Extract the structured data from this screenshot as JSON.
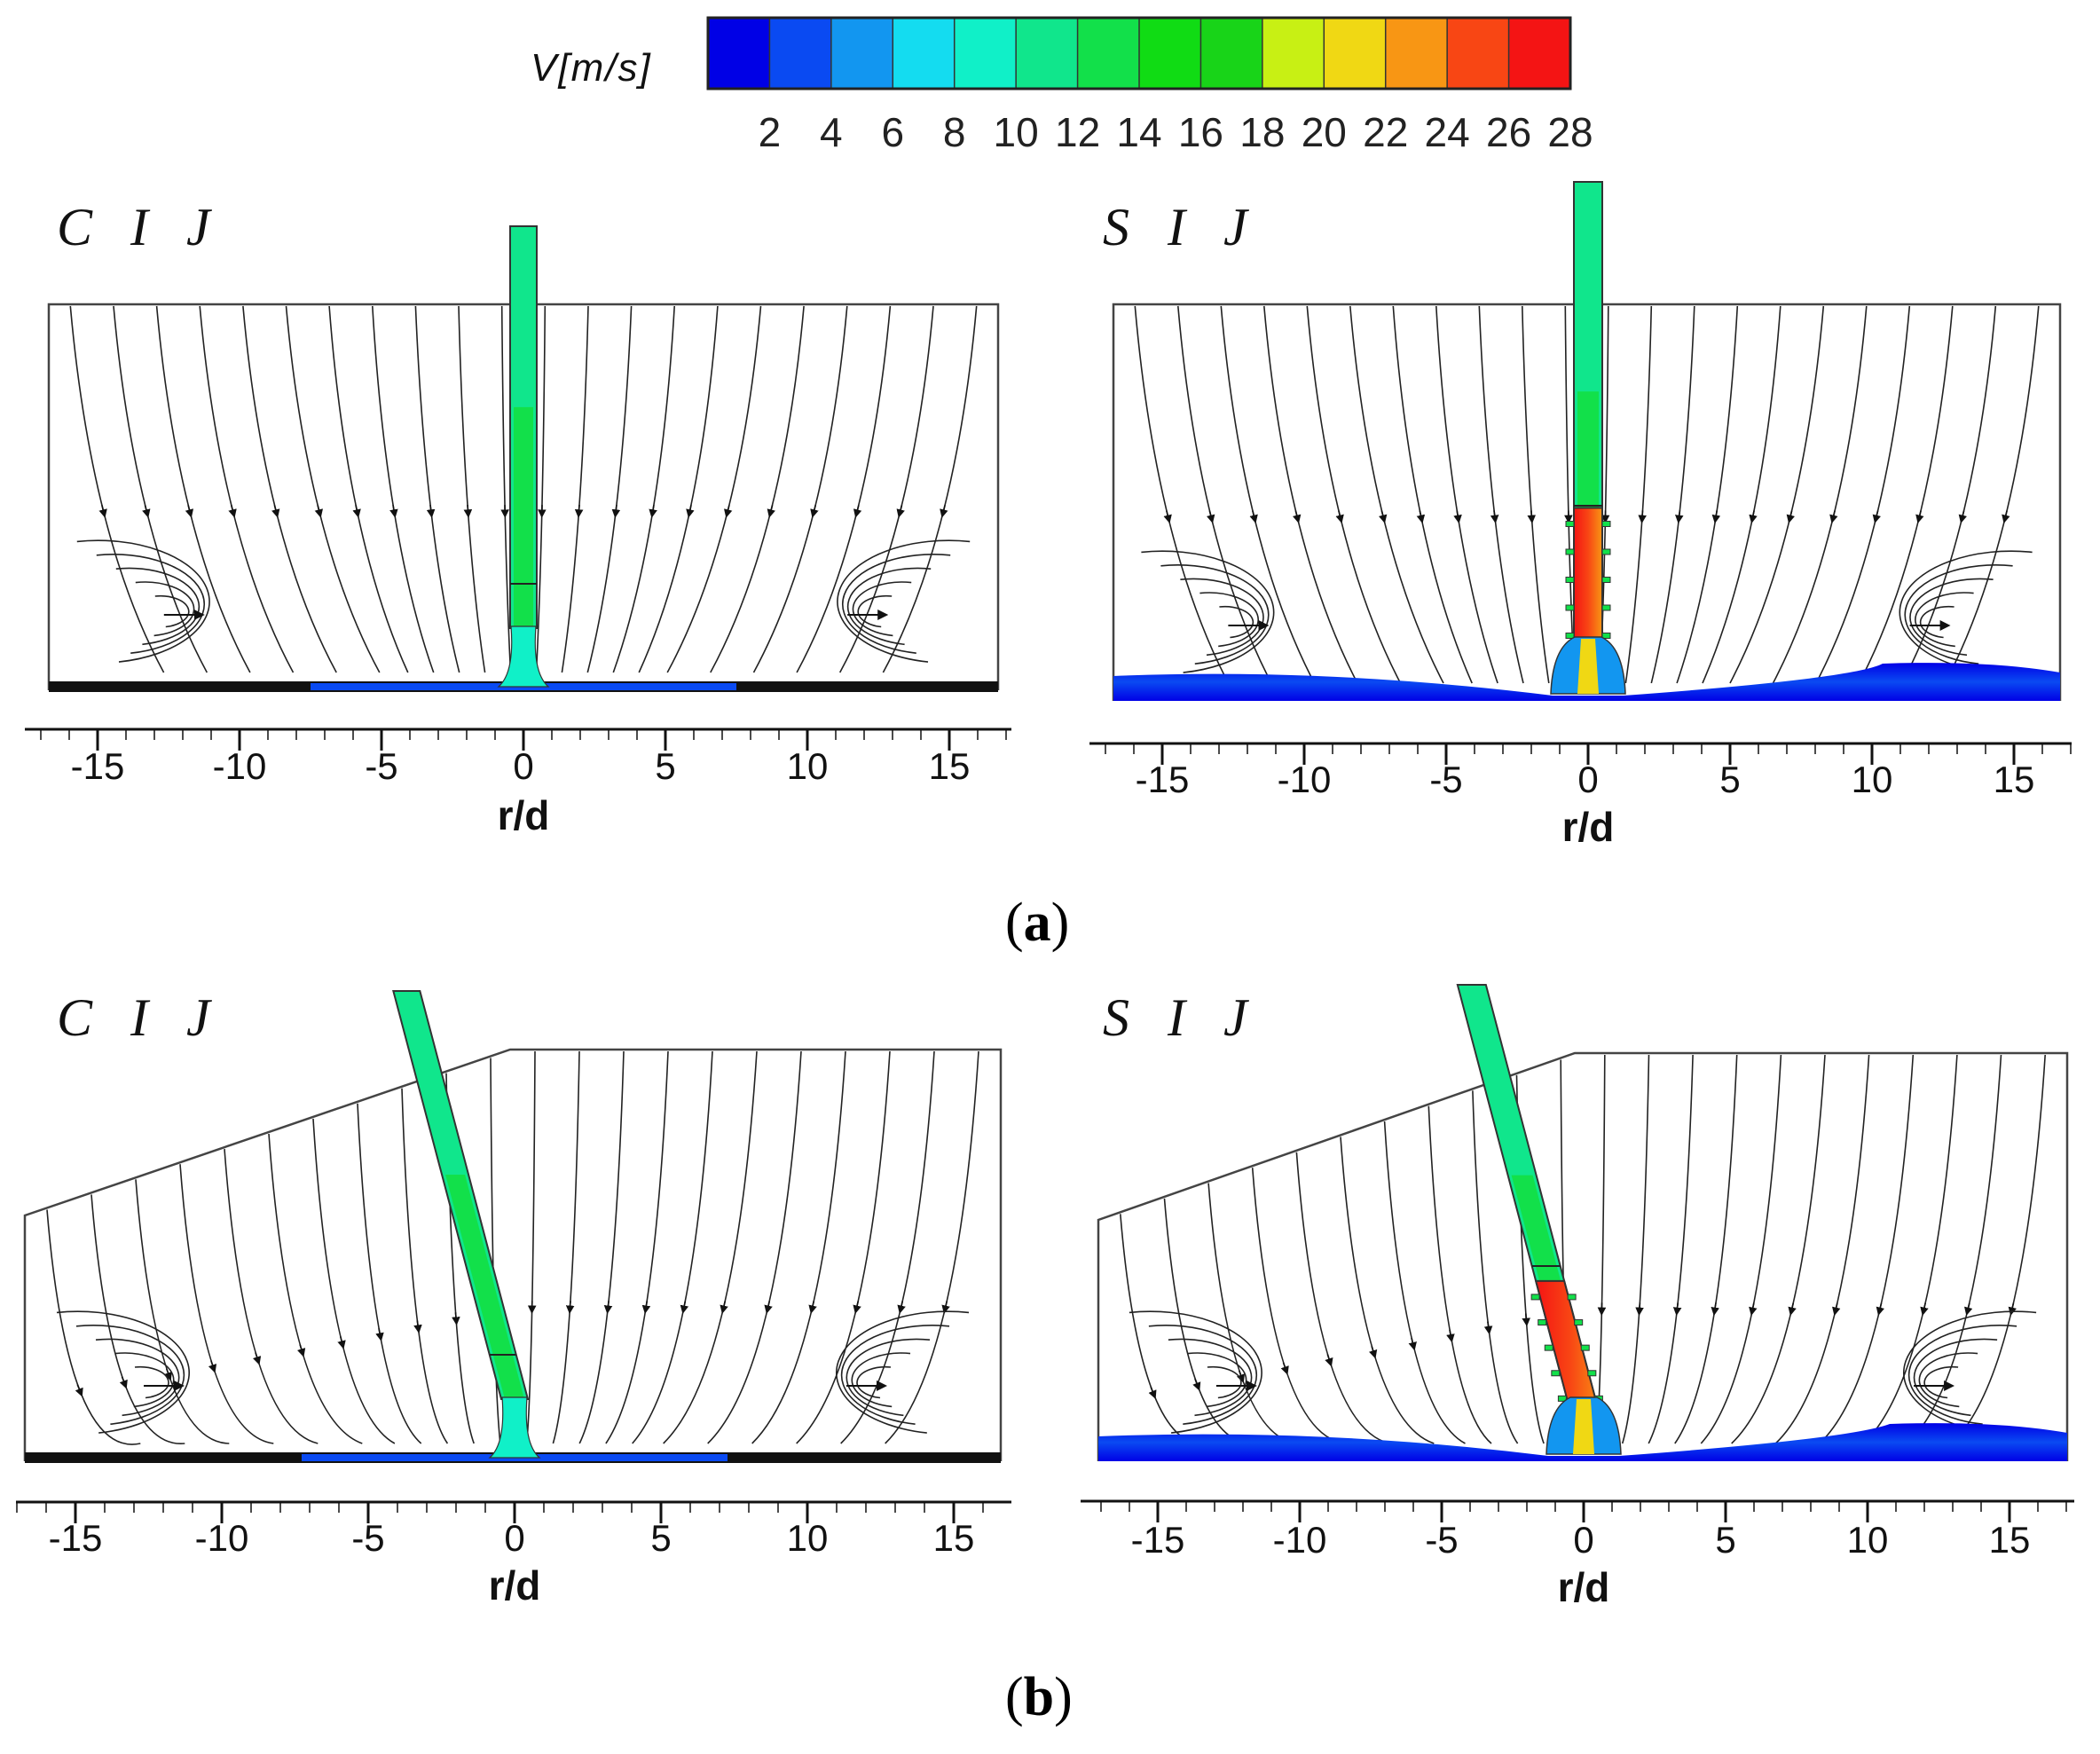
{
  "colorbar": {
    "label": "V[m/s]",
    "tick_labels": [
      "2",
      "4",
      "6",
      "8",
      "10",
      "12",
      "14",
      "16",
      "18",
      "20",
      "22",
      "24",
      "26",
      "28"
    ],
    "colors": [
      "#0000e6",
      "#0a4af2",
      "#1296f0",
      "#14dcf0",
      "#10f0c8",
      "#10e68c",
      "#12e04a",
      "#10dc14",
      "#18d418",
      "#c8f014",
      "#f0d814",
      "#f89614",
      "#f84614",
      "#f41414"
    ]
  },
  "axis": {
    "title": "r/d",
    "tick_labels": [
      "-15",
      "-10",
      "-5",
      "0",
      "5",
      "10",
      "15"
    ]
  },
  "panels": {
    "a_left": {
      "tag": "C I J"
    },
    "a_right": {
      "tag": "S I J"
    },
    "b_left": {
      "tag": "C I J"
    },
    "b_right": {
      "tag": "S I J"
    }
  },
  "subfigure_labels": {
    "a": {
      "open": "(",
      "letter": "a",
      "close": ")"
    },
    "b": {
      "open": "(",
      "letter": "b",
      "close": ")"
    }
  }
}
